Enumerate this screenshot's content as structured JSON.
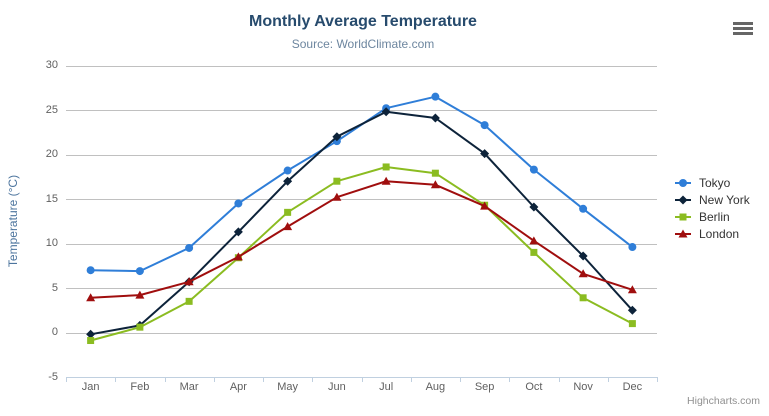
{
  "chart": {
    "title": "Monthly Average Temperature",
    "subtitle": "Source: WorldClimate.com",
    "credit": "Highcharts.com"
  },
  "colors": {
    "grid": "#C0C0C0",
    "axis_line": "#C0D0E0",
    "title": "#274b6d",
    "subtitle": "#6d869f",
    "axis_title": "#4d759e",
    "tick_label": "#606060",
    "legend_text": "#333333"
  },
  "icons": {
    "export_menu": "hamburger-icon"
  },
  "chart_data": {
    "type": "line",
    "title": "Monthly Average Temperature",
    "subtitle": "Source: WorldClimate.com",
    "xlabel": "",
    "ylabel": "Temperature (°C)",
    "categories": [
      "Jan",
      "Feb",
      "Mar",
      "Apr",
      "May",
      "Jun",
      "Jul",
      "Aug",
      "Sep",
      "Oct",
      "Nov",
      "Dec"
    ],
    "ylim": [
      -5,
      30
    ],
    "yticks": [
      -5,
      0,
      5,
      10,
      15,
      20,
      25,
      30
    ],
    "grid": true,
    "legend_position": "right",
    "series": [
      {
        "name": "Tokyo",
        "color": "#2f7ed8",
        "marker": "circle",
        "values": [
          7.0,
          6.9,
          9.5,
          14.5,
          18.2,
          21.5,
          25.2,
          26.5,
          23.3,
          18.3,
          13.9,
          9.6
        ]
      },
      {
        "name": "New York",
        "color": "#0d233a",
        "marker": "diamond",
        "values": [
          -0.2,
          0.8,
          5.7,
          11.3,
          17.0,
          22.0,
          24.8,
          24.1,
          20.1,
          14.1,
          8.6,
          2.5
        ]
      },
      {
        "name": "Berlin",
        "color": "#8bbc21",
        "marker": "square",
        "values": [
          -0.9,
          0.6,
          3.5,
          8.4,
          13.5,
          17.0,
          18.6,
          17.9,
          14.3,
          9.0,
          3.9,
          1.0
        ]
      },
      {
        "name": "London",
        "color": "#a00e0e",
        "marker": "triangle",
        "values": [
          3.9,
          4.2,
          5.7,
          8.5,
          11.9,
          15.2,
          17.0,
          16.6,
          14.2,
          10.3,
          6.6,
          4.8
        ]
      }
    ]
  }
}
